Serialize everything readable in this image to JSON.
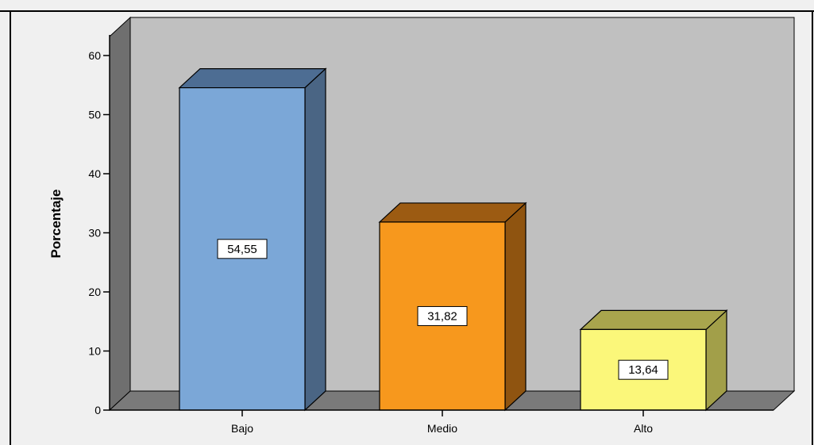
{
  "chart_data": {
    "type": "bar",
    "title": "",
    "xlabel": "",
    "ylabel": "Porcentaje",
    "categories": [
      "Bajo",
      "Medio",
      "Alto"
    ],
    "values": [
      54.55,
      31.82,
      13.64
    ],
    "data_labels": [
      "54,55",
      "31,82",
      "13,64"
    ],
    "ylim": [
      0,
      60
    ],
    "yticks": [
      0,
      10,
      20,
      30,
      40,
      50,
      60
    ],
    "grid": false,
    "legend": "none",
    "style": "3d",
    "colors": {
      "bars": [
        {
          "front": "#7ba7d7",
          "top": "#4d6d93",
          "side": "#4a6584"
        },
        {
          "front": "#f7981d",
          "top": "#9c5b12",
          "side": "#8f5410"
        },
        {
          "front": "#fbf77a",
          "top": "#a9a54d",
          "side": "#a29f49"
        }
      ],
      "plot_back": "#c0c0c0",
      "wall": "#6f6f6f",
      "floor": "#7a7a7a",
      "page_background": "#f0f0f0"
    }
  }
}
